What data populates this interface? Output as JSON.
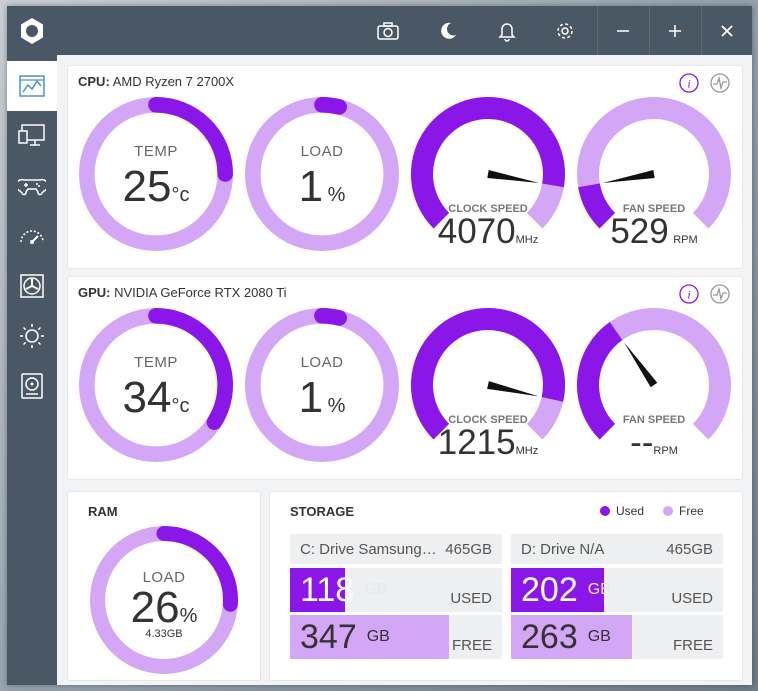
{
  "colors": {
    "used": "#8a16e8",
    "free": "#d4a6f6",
    "titlebar": "#4a5764"
  },
  "titlebar": {
    "icons": [
      "camera-icon",
      "moon-icon",
      "bell-icon",
      "gear-icon",
      "minimize-icon",
      "maximize-icon",
      "close-icon"
    ]
  },
  "sidebar": {
    "items": [
      "dashboard-icon",
      "monitor-icon",
      "gamepad-icon",
      "speedometer-icon",
      "fan-icon",
      "brightness-icon",
      "storage-icon"
    ]
  },
  "cpu": {
    "label": "CPU:",
    "name": "AMD Ryzen 7 2700X",
    "temp": {
      "label": "TEMP",
      "value": "25",
      "unit": "°c",
      "fraction": 0.25
    },
    "load": {
      "label": "LOAD",
      "value": "1",
      "unit": "%",
      "fraction": 0.01
    },
    "clock": {
      "label": "CLOCK SPEED",
      "value": "4070",
      "unit": "MHz",
      "fraction": 0.87
    },
    "fan": {
      "label": "FAN SPEED",
      "value": "529",
      "unit": "RPM",
      "fraction": 0.13
    }
  },
  "gpu": {
    "label": "GPU:",
    "name": "NVIDIA GeForce RTX 2080 Ti",
    "temp": {
      "label": "TEMP",
      "value": "34",
      "unit": "°c",
      "fraction": 0.34
    },
    "load": {
      "label": "LOAD",
      "value": "1",
      "unit": "%",
      "fraction": 0.01
    },
    "clock": {
      "label": "CLOCK SPEED",
      "value": "1215",
      "unit": "MHz",
      "fraction": 0.88
    },
    "fan": {
      "label": "FAN SPEED",
      "value": "--",
      "unit": "RPM",
      "fraction": 0.37
    }
  },
  "ram": {
    "title": "RAM",
    "label": "LOAD",
    "value": "26",
    "unit": "%",
    "sub": "4.33GB",
    "fraction": 0.26
  },
  "storage": {
    "title": "STORAGE",
    "legend_used": "Used",
    "legend_free": "Free",
    "drives": [
      {
        "name": "C: Drive Samsung SSD",
        "size": "465GB",
        "used": "118",
        "free": "347",
        "unit": "GB",
        "used_tag": "USED",
        "free_tag": "FREE",
        "used_fraction": 0.26,
        "free_fraction": 0.75
      },
      {
        "name": "D: Drive N/A",
        "size": "465GB",
        "used": "202",
        "free": "263",
        "unit": "GB",
        "used_tag": "USED",
        "free_tag": "FREE",
        "used_fraction": 0.44,
        "free_fraction": 0.57
      }
    ]
  }
}
